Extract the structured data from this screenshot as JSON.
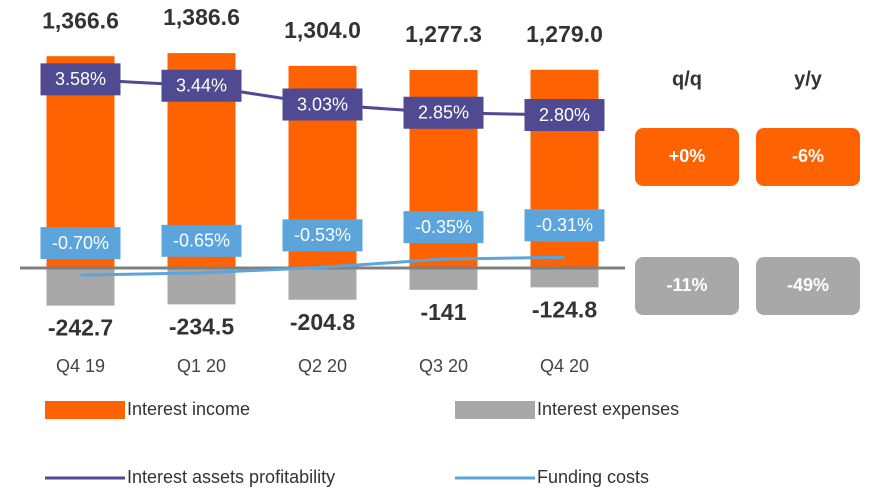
{
  "chart_data": {
    "type": "bar",
    "categories": [
      "Q4 19",
      "Q1 20",
      "Q2 20",
      "Q3 20",
      "Q4 20"
    ],
    "series": [
      {
        "name": "Interest income",
        "type": "bar",
        "color": "#ff6200",
        "values": [
          1366.6,
          1386.6,
          1304.0,
          1277.3,
          1279.0
        ],
        "value_labels": [
          "1,366.6",
          "1,386.6",
          "1,304.0",
          "1,277.3",
          "1,279.0"
        ]
      },
      {
        "name": "Interest expenses",
        "type": "bar",
        "color": "#a8a8a8",
        "values": [
          -242.7,
          -234.5,
          -204.8,
          -141.0,
          -124.8
        ]
      },
      {
        "name": "Interest assets profitability",
        "type": "line",
        "axis": "y2",
        "color": "#4f4a92",
        "values": [
          3.58,
          3.44,
          3.03,
          2.85,
          2.8
        ],
        "value_labels": [
          "3.58%",
          "3.44%",
          "3.03%",
          "2.85%",
          "2.80%"
        ]
      },
      {
        "name": "Funding costs",
        "type": "line",
        "axis": "y2",
        "color": "#5ba4dc",
        "values": [
          -0.7,
          -0.65,
          -0.53,
          -0.35,
          -0.31
        ],
        "value_labels": [
          "-0.70%",
          "-0.65%",
          "-0.53%",
          "-0.35%",
          "-0.31%"
        ]
      }
    ],
    "ylim": [
      -400,
      1400
    ],
    "y2lim": [
      -1.9,
      4.2
    ],
    "comparison": {
      "headers": [
        "q/q",
        "y/y"
      ],
      "rows": [
        [
          "+0%",
          "-6%"
        ],
        [
          "-11%",
          "-49%"
        ]
      ]
    }
  }
}
